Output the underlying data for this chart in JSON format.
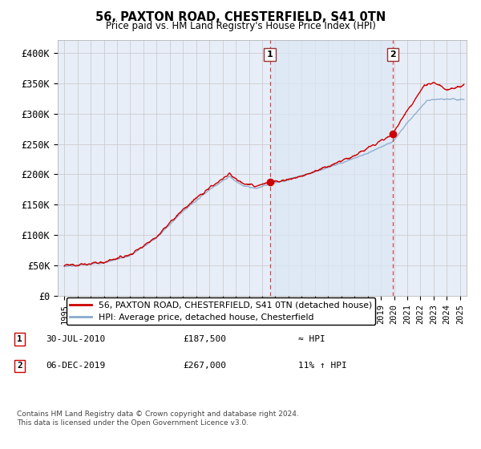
{
  "title": "56, PAXTON ROAD, CHESTERFIELD, S41 0TN",
  "subtitle": "Price paid vs. HM Land Registry's House Price Index (HPI)",
  "legend_label_red": "56, PAXTON ROAD, CHESTERFIELD, S41 0TN (detached house)",
  "legend_label_blue": "HPI: Average price, detached house, Chesterfield",
  "footer": "Contains HM Land Registry data © Crown copyright and database right 2024.\nThis data is licensed under the Open Government Licence v3.0.",
  "ylim": [
    0,
    420000
  ],
  "yticks": [
    0,
    50000,
    100000,
    150000,
    200000,
    250000,
    300000,
    350000,
    400000
  ],
  "ytick_labels": [
    "£0",
    "£50K",
    "£100K",
    "£150K",
    "£200K",
    "£250K",
    "£300K",
    "£350K",
    "£400K"
  ],
  "color_red": "#cc0000",
  "color_blue": "#88aacc",
  "color_grid": "#cccccc",
  "color_bg": "#e8eef8",
  "color_shade": "#dce8f5",
  "dot1_x": 2010.58,
  "dot1_y": 187500,
  "dot2_x": 2019.92,
  "dot2_y": 267000,
  "xmin": 1994.5,
  "xmax": 2025.5
}
